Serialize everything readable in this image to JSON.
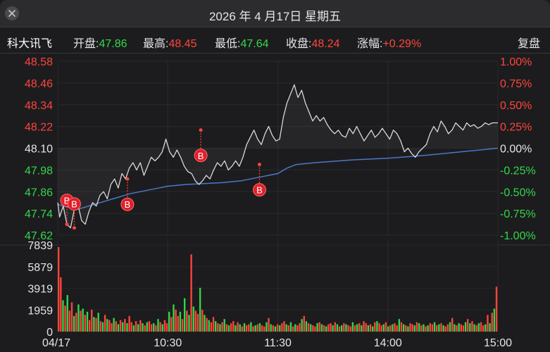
{
  "window": {
    "title": "2026 年 4 月17日  星期五"
  },
  "info": {
    "stock_name": "科大讯飞",
    "open_label": "开盘:",
    "open_value": "47.86",
    "high_label": "最高:",
    "high_value": "48.45",
    "low_label": "最低:",
    "low_value": "47.64",
    "close_label": "收盘:",
    "close_value": "48.24",
    "change_label": "涨幅:",
    "change_value": "+0.29%",
    "adjust_button": "复盘"
  },
  "colors": {
    "up": "#ff453a",
    "down": "#32d74b",
    "flat": "#e5e5ea",
    "price_line": "#d8d8dc",
    "avg_line": "#4a78c8",
    "bg": "#1c1c1e"
  },
  "icons": {
    "close": "close-x-icon",
    "marker": "buy-marker-icon"
  },
  "chart_data": {
    "type": "line",
    "x_labels": [
      "04/17",
      "10:30",
      "11:30",
      "14:00",
      "15:00"
    ],
    "price_ticks": [
      "48.58",
      "48.46",
      "48.34",
      "48.22",
      "48.10",
      "47.98",
      "47.86",
      "47.74",
      "47.62"
    ],
    "percent_ticks": [
      "1.00%",
      "0.75%",
      "0.50%",
      "0.25%",
      "0.00%",
      "-0.25%",
      "-0.50%",
      "-0.75%",
      "-1.00%"
    ],
    "volume_ticks": [
      "7839",
      "5879",
      "3919",
      "1959",
      "0"
    ],
    "price_range": [
      47.62,
      48.58
    ],
    "volume_range": [
      0,
      8300
    ],
    "minutes": 240,
    "price": [
      [
        0,
        47.8
      ],
      [
        1,
        47.72
      ],
      [
        3,
        47.78
      ],
      [
        5,
        47.68
      ],
      [
        7,
        47.66
      ],
      [
        9,
        47.76
      ],
      [
        11,
        47.79
      ],
      [
        13,
        47.7
      ],
      [
        15,
        47.68
      ],
      [
        17,
        47.75
      ],
      [
        19,
        47.8
      ],
      [
        21,
        47.78
      ],
      [
        23,
        47.84
      ],
      [
        25,
        47.86
      ],
      [
        27,
        47.82
      ],
      [
        29,
        47.9
      ],
      [
        31,
        47.93
      ],
      [
        33,
        47.88
      ],
      [
        35,
        47.96
      ],
      [
        37,
        47.93
      ],
      [
        39,
        47.99
      ],
      [
        41,
        48.02
      ],
      [
        43,
        47.98
      ],
      [
        45,
        48.02
      ],
      [
        47,
        47.95
      ],
      [
        49,
        48.0
      ],
      [
        51,
        48.05
      ],
      [
        53,
        48.03
      ],
      [
        55,
        48.05
      ],
      [
        57,
        48.08
      ],
      [
        59,
        48.15
      ],
      [
        61,
        48.08
      ],
      [
        63,
        48.05
      ],
      [
        65,
        48.09
      ],
      [
        67,
        48.05
      ],
      [
        69,
        48.0
      ],
      [
        71,
        47.97
      ],
      [
        73,
        47.96
      ],
      [
        75,
        47.92
      ],
      [
        77,
        47.9
      ],
      [
        79,
        47.92
      ],
      [
        81,
        47.95
      ],
      [
        83,
        47.93
      ],
      [
        85,
        47.98
      ],
      [
        87,
        48.02
      ],
      [
        89,
        48.0
      ],
      [
        91,
        48.03
      ],
      [
        93,
        47.98
      ],
      [
        95,
        48.0
      ],
      [
        97,
        48.03
      ],
      [
        99,
        48.0
      ],
      [
        101,
        48.05
      ],
      [
        103,
        48.12
      ],
      [
        105,
        48.16
      ],
      [
        107,
        48.2
      ],
      [
        109,
        48.15
      ],
      [
        111,
        48.12
      ],
      [
        113,
        48.18
      ],
      [
        115,
        48.22
      ],
      [
        117,
        48.17
      ],
      [
        119,
        48.14
      ],
      [
        121,
        48.15
      ],
      [
        123,
        48.27
      ],
      [
        125,
        48.35
      ],
      [
        127,
        48.4
      ],
      [
        129,
        48.45
      ],
      [
        131,
        48.38
      ],
      [
        133,
        48.42
      ],
      [
        135,
        48.35
      ],
      [
        137,
        48.3
      ],
      [
        139,
        48.25
      ],
      [
        141,
        48.28
      ],
      [
        143,
        48.25
      ],
      [
        145,
        48.27
      ],
      [
        147,
        48.23
      ],
      [
        149,
        48.2
      ],
      [
        151,
        48.18
      ],
      [
        153,
        48.2
      ],
      [
        155,
        48.17
      ],
      [
        157,
        48.16
      ],
      [
        159,
        48.21
      ],
      [
        161,
        48.18
      ],
      [
        163,
        48.22
      ],
      [
        165,
        48.18
      ],
      [
        167,
        48.14
      ],
      [
        169,
        48.17
      ],
      [
        171,
        48.2
      ],
      [
        173,
        48.16
      ],
      [
        175,
        48.18
      ],
      [
        177,
        48.21
      ],
      [
        179,
        48.18
      ],
      [
        181,
        48.15
      ],
      [
        183,
        48.2
      ],
      [
        185,
        48.18
      ],
      [
        187,
        48.14
      ],
      [
        189,
        48.08
      ],
      [
        191,
        48.1
      ],
      [
        193,
        48.07
      ],
      [
        195,
        48.05
      ],
      [
        197,
        48.08
      ],
      [
        199,
        48.1
      ],
      [
        201,
        48.12
      ],
      [
        203,
        48.18
      ],
      [
        205,
        48.22
      ],
      [
        207,
        48.19
      ],
      [
        209,
        48.25
      ],
      [
        211,
        48.22
      ],
      [
        213,
        48.18
      ],
      [
        215,
        48.2
      ],
      [
        217,
        48.24
      ],
      [
        219,
        48.22
      ],
      [
        221,
        48.2
      ],
      [
        223,
        48.24
      ],
      [
        225,
        48.22
      ],
      [
        227,
        48.23
      ],
      [
        229,
        48.21
      ],
      [
        231,
        48.22
      ],
      [
        233,
        48.24
      ],
      [
        235,
        48.23
      ],
      [
        237,
        48.24
      ],
      [
        240,
        48.24
      ]
    ],
    "avg_price": [
      [
        0,
        47.79
      ],
      [
        10,
        47.76
      ],
      [
        20,
        47.79
      ],
      [
        30,
        47.82
      ],
      [
        40,
        47.85
      ],
      [
        50,
        47.87
      ],
      [
        60,
        47.89
      ],
      [
        70,
        47.9
      ],
      [
        80,
        47.905
      ],
      [
        90,
        47.91
      ],
      [
        100,
        47.92
      ],
      [
        110,
        47.94
      ],
      [
        120,
        47.96
      ],
      [
        125,
        47.99
      ],
      [
        130,
        48.01
      ],
      [
        140,
        48.02
      ],
      [
        160,
        48.035
      ],
      [
        180,
        48.045
      ],
      [
        200,
        48.06
      ],
      [
        220,
        48.08
      ],
      [
        240,
        48.1
      ]
    ],
    "volume": [
      8100,
      5200,
      3000,
      2500,
      3500,
      2000,
      2800,
      1500,
      1800,
      2600,
      2000,
      2200,
      1600,
      1900,
      1100,
      2100,
      1400,
      1300,
      1800,
      1000,
      900,
      1600,
      1200,
      1100,
      800,
      1300,
      1000,
      700,
      1100,
      900,
      1200,
      800,
      1500,
      900,
      600,
      1000,
      700,
      1100,
      800,
      600,
      900,
      1000,
      700,
      800,
      600,
      1200,
      900,
      700,
      1100,
      800,
      1900,
      1400,
      2600,
      2100,
      1500,
      1900,
      1200,
      3200,
      2000,
      1600,
      7400,
      2400,
      2000,
      1700,
      4200,
      2100,
      1600,
      1300,
      1100,
      900,
      1400,
      1000,
      800,
      700,
      900,
      1200,
      700,
      600,
      800,
      1000,
      600,
      900,
      700,
      500,
      800,
      600,
      700,
      900,
      500,
      600,
      700,
      800,
      600,
      500,
      900,
      1300,
      700,
      600,
      500,
      700,
      600,
      800,
      1000,
      700,
      600,
      900,
      500,
      700,
      600,
      800,
      1200,
      1500,
      1000,
      800,
      700,
      600,
      500,
      800,
      900,
      700,
      600,
      500,
      700,
      800,
      600,
      900,
      700,
      500,
      600,
      800,
      700,
      600,
      500,
      900,
      600,
      700,
      800,
      600,
      1000,
      800,
      600,
      700,
      500,
      900,
      1000,
      800,
      600,
      700,
      900,
      500,
      600,
      700,
      800,
      600,
      1200,
      900,
      700,
      600,
      500,
      800,
      700,
      600,
      900,
      800,
      600,
      700,
      500,
      600,
      800,
      700,
      900,
      600,
      700,
      800,
      600,
      500,
      700,
      900,
      1300,
      700,
      600,
      800,
      700,
      600,
      900,
      1200,
      800,
      1000,
      700,
      600,
      800,
      900,
      600,
      700,
      1600,
      800,
      1800,
      2200,
      4300
    ],
    "volume_up": [
      1,
      1,
      0,
      1,
      0,
      1,
      1,
      0,
      1,
      0,
      1,
      0,
      1,
      0,
      1,
      1,
      0,
      1,
      0,
      1,
      0,
      1,
      0,
      1,
      1,
      0,
      1,
      0,
      1,
      0,
      1,
      0,
      1,
      1,
      0,
      1,
      0,
      1,
      0,
      1,
      0,
      1,
      1,
      0,
      1,
      0,
      1,
      0,
      1,
      1,
      0,
      1,
      0,
      1,
      1,
      0,
      1,
      0,
      1,
      0,
      1,
      0,
      1,
      1,
      0,
      1,
      0,
      1,
      0,
      1,
      1,
      0,
      1,
      0,
      1,
      0,
      1,
      0,
      1,
      1,
      0,
      1,
      0,
      1,
      0,
      1,
      1,
      0,
      1,
      0,
      1,
      0,
      1,
      1,
      0,
      1,
      0,
      1,
      0,
      1,
      0,
      1,
      1,
      0,
      1,
      0,
      1,
      0,
      1,
      1,
      0,
      1,
      0,
      1,
      0,
      1,
      1,
      0,
      1,
      0,
      1,
      0,
      1,
      1,
      0,
      1,
      0,
      1,
      0,
      1,
      0,
      1,
      1,
      0,
      1,
      0,
      1,
      0,
      1,
      1,
      0,
      1,
      0,
      1,
      0,
      1,
      1,
      0,
      1,
      0,
      1,
      0,
      1,
      1,
      0,
      1,
      0,
      1,
      0,
      1,
      1,
      0,
      1,
      0,
      1,
      0,
      1,
      0,
      1,
      1,
      0,
      1,
      0,
      1,
      0,
      1,
      1,
      0,
      1,
      0,
      1,
      0,
      1,
      1,
      0,
      1,
      0,
      1,
      0,
      1,
      0,
      1,
      1,
      0,
      1,
      0,
      1,
      0,
      1,
      1,
      0,
      1,
      0,
      1,
      0,
      1,
      1,
      0,
      1,
      0,
      1,
      0,
      1,
      0,
      1,
      1,
      0,
      1,
      0,
      1,
      0,
      1,
      1,
      0,
      1,
      0,
      1,
      0,
      1,
      1,
      0,
      1,
      0,
      1,
      0,
      1,
      0,
      1,
      1,
      0,
      1,
      0,
      1,
      0,
      1,
      1,
      0,
      1,
      0,
      1,
      0,
      1,
      1,
      0,
      1,
      0,
      1,
      0,
      1,
      1
    ],
    "markers": [
      {
        "label": "B",
        "minute": 5,
        "price": 47.68,
        "position": "above"
      },
      {
        "label": "B",
        "minute": 9,
        "price": 47.66,
        "position": "above"
      },
      {
        "label": "B",
        "minute": 38,
        "price": 47.93,
        "position": "below"
      },
      {
        "label": "B",
        "minute": 78,
        "price": 48.2,
        "position": "below"
      },
      {
        "label": "B",
        "minute": 110,
        "price": 48.01,
        "position": "below"
      }
    ]
  }
}
